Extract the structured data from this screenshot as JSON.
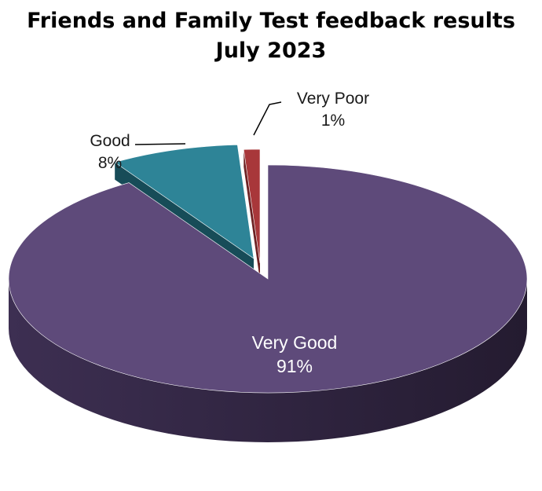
{
  "chart_data": {
    "type": "pie",
    "title": "Friends and Family Test feedback results",
    "subtitle": "July 2023",
    "categories": [
      "Very Good",
      "Good",
      "Very Poor"
    ],
    "values": [
      91,
      8,
      1
    ],
    "labels": [
      "91%",
      "8%",
      "1%"
    ],
    "colors": [
      "#5e4a7a",
      "#2e8497",
      "#a8373a"
    ],
    "side_colors": [
      "#3d2f52",
      "#174c58",
      "#6e2224"
    ],
    "legend": "none"
  }
}
